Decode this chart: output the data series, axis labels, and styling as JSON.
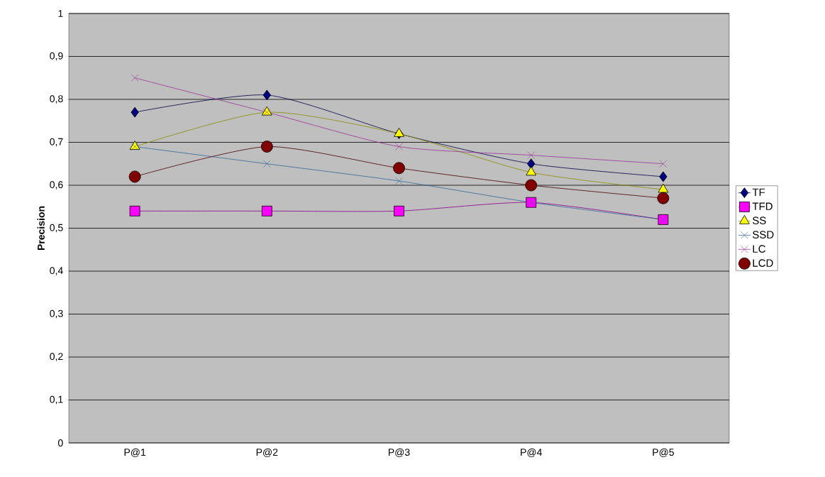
{
  "chart_data": {
    "type": "line",
    "ylabel": "Precision",
    "categories": [
      "P@1",
      "P@2",
      "P@3",
      "P@4",
      "P@5"
    ],
    "series": [
      {
        "name": "TF",
        "color": "#000080",
        "marker": "diamond",
        "values": [
          0.77,
          0.81,
          0.72,
          0.65,
          0.62
        ]
      },
      {
        "name": "TFD",
        "color": "#ff00ff",
        "marker": "square",
        "values": [
          0.54,
          0.54,
          0.54,
          0.56,
          0.52
        ]
      },
      {
        "name": "SS",
        "color": "#ffff00",
        "marker": "triangle",
        "values": [
          0.69,
          0.77,
          0.72,
          0.63,
          0.59
        ]
      },
      {
        "name": "SSD",
        "color": "#336699",
        "marker": "cross",
        "values": [
          0.69,
          0.65,
          0.61,
          0.56,
          0.52
        ]
      },
      {
        "name": "LC",
        "color": "#993399",
        "marker": "cross",
        "values": [
          0.85,
          0.77,
          0.69,
          0.67,
          0.65
        ]
      },
      {
        "name": "LCD",
        "color": "#800000",
        "marker": "circle",
        "values": [
          0.62,
          0.69,
          0.64,
          0.6,
          0.57
        ]
      }
    ],
    "ylim": [
      0,
      1
    ],
    "yticks": [
      0,
      {
        "value": 0.1,
        "label": "0,1"
      },
      {
        "value": 0.2,
        "label": "0,2"
      },
      {
        "value": 0.3,
        "label": "0,3"
      },
      {
        "value": 0.4,
        "label": "0,4"
      },
      {
        "value": 0.5,
        "label": "0,5"
      },
      {
        "value": 0.6,
        "label": "0,6"
      },
      {
        "value": 0.7,
        "label": "0,7"
      },
      {
        "value": 0.8,
        "label": "0,8"
      },
      {
        "value": 0.9,
        "label": "0,9"
      },
      1
    ],
    "grid": "y",
    "legend": "right",
    "line_style": "solid"
  }
}
